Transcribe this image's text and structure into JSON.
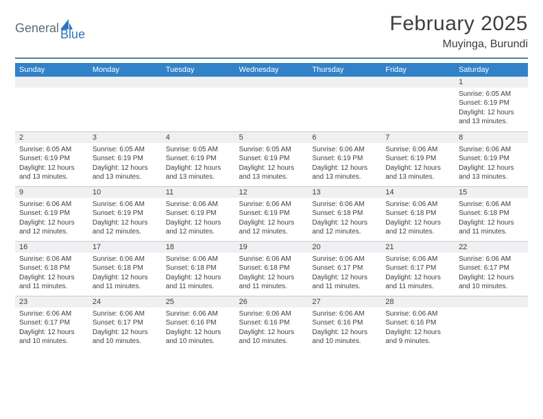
{
  "brand": {
    "text1": "General",
    "text2": "Blue"
  },
  "title": {
    "month": "February 2025",
    "location": "Muyinga, Burundi"
  },
  "colors": {
    "header_bg": "#3182c8",
    "header_text": "#ffffff",
    "stripe_bg": "#eef0f1",
    "underline": "#5b7a99",
    "body_text": "#3d3d3d",
    "brand_gray": "#5f6a72",
    "brand_blue": "#2d75bb"
  },
  "day_headers": [
    "Sunday",
    "Monday",
    "Tuesday",
    "Wednesday",
    "Thursday",
    "Friday",
    "Saturday"
  ],
  "weeks": [
    [
      null,
      null,
      null,
      null,
      null,
      null,
      {
        "n": "1",
        "sunrise": "Sunrise: 6:05 AM",
        "sunset": "Sunset: 6:19 PM",
        "day1": "Daylight: 12 hours",
        "day2": "and 13 minutes."
      }
    ],
    [
      {
        "n": "2",
        "sunrise": "Sunrise: 6:05 AM",
        "sunset": "Sunset: 6:19 PM",
        "day1": "Daylight: 12 hours",
        "day2": "and 13 minutes."
      },
      {
        "n": "3",
        "sunrise": "Sunrise: 6:05 AM",
        "sunset": "Sunset: 6:19 PM",
        "day1": "Daylight: 12 hours",
        "day2": "and 13 minutes."
      },
      {
        "n": "4",
        "sunrise": "Sunrise: 6:05 AM",
        "sunset": "Sunset: 6:19 PM",
        "day1": "Daylight: 12 hours",
        "day2": "and 13 minutes."
      },
      {
        "n": "5",
        "sunrise": "Sunrise: 6:05 AM",
        "sunset": "Sunset: 6:19 PM",
        "day1": "Daylight: 12 hours",
        "day2": "and 13 minutes."
      },
      {
        "n": "6",
        "sunrise": "Sunrise: 6:06 AM",
        "sunset": "Sunset: 6:19 PM",
        "day1": "Daylight: 12 hours",
        "day2": "and 13 minutes."
      },
      {
        "n": "7",
        "sunrise": "Sunrise: 6:06 AM",
        "sunset": "Sunset: 6:19 PM",
        "day1": "Daylight: 12 hours",
        "day2": "and 13 minutes."
      },
      {
        "n": "8",
        "sunrise": "Sunrise: 6:06 AM",
        "sunset": "Sunset: 6:19 PM",
        "day1": "Daylight: 12 hours",
        "day2": "and 13 minutes."
      }
    ],
    [
      {
        "n": "9",
        "sunrise": "Sunrise: 6:06 AM",
        "sunset": "Sunset: 6:19 PM",
        "day1": "Daylight: 12 hours",
        "day2": "and 12 minutes."
      },
      {
        "n": "10",
        "sunrise": "Sunrise: 6:06 AM",
        "sunset": "Sunset: 6:19 PM",
        "day1": "Daylight: 12 hours",
        "day2": "and 12 minutes."
      },
      {
        "n": "11",
        "sunrise": "Sunrise: 6:06 AM",
        "sunset": "Sunset: 6:19 PM",
        "day1": "Daylight: 12 hours",
        "day2": "and 12 minutes."
      },
      {
        "n": "12",
        "sunrise": "Sunrise: 6:06 AM",
        "sunset": "Sunset: 6:19 PM",
        "day1": "Daylight: 12 hours",
        "day2": "and 12 minutes."
      },
      {
        "n": "13",
        "sunrise": "Sunrise: 6:06 AM",
        "sunset": "Sunset: 6:18 PM",
        "day1": "Daylight: 12 hours",
        "day2": "and 12 minutes."
      },
      {
        "n": "14",
        "sunrise": "Sunrise: 6:06 AM",
        "sunset": "Sunset: 6:18 PM",
        "day1": "Daylight: 12 hours",
        "day2": "and 12 minutes."
      },
      {
        "n": "15",
        "sunrise": "Sunrise: 6:06 AM",
        "sunset": "Sunset: 6:18 PM",
        "day1": "Daylight: 12 hours",
        "day2": "and 11 minutes."
      }
    ],
    [
      {
        "n": "16",
        "sunrise": "Sunrise: 6:06 AM",
        "sunset": "Sunset: 6:18 PM",
        "day1": "Daylight: 12 hours",
        "day2": "and 11 minutes."
      },
      {
        "n": "17",
        "sunrise": "Sunrise: 6:06 AM",
        "sunset": "Sunset: 6:18 PM",
        "day1": "Daylight: 12 hours",
        "day2": "and 11 minutes."
      },
      {
        "n": "18",
        "sunrise": "Sunrise: 6:06 AM",
        "sunset": "Sunset: 6:18 PM",
        "day1": "Daylight: 12 hours",
        "day2": "and 11 minutes."
      },
      {
        "n": "19",
        "sunrise": "Sunrise: 6:06 AM",
        "sunset": "Sunset: 6:18 PM",
        "day1": "Daylight: 12 hours",
        "day2": "and 11 minutes."
      },
      {
        "n": "20",
        "sunrise": "Sunrise: 6:06 AM",
        "sunset": "Sunset: 6:17 PM",
        "day1": "Daylight: 12 hours",
        "day2": "and 11 minutes."
      },
      {
        "n": "21",
        "sunrise": "Sunrise: 6:06 AM",
        "sunset": "Sunset: 6:17 PM",
        "day1": "Daylight: 12 hours",
        "day2": "and 11 minutes."
      },
      {
        "n": "22",
        "sunrise": "Sunrise: 6:06 AM",
        "sunset": "Sunset: 6:17 PM",
        "day1": "Daylight: 12 hours",
        "day2": "and 10 minutes."
      }
    ],
    [
      {
        "n": "23",
        "sunrise": "Sunrise: 6:06 AM",
        "sunset": "Sunset: 6:17 PM",
        "day1": "Daylight: 12 hours",
        "day2": "and 10 minutes."
      },
      {
        "n": "24",
        "sunrise": "Sunrise: 6:06 AM",
        "sunset": "Sunset: 6:17 PM",
        "day1": "Daylight: 12 hours",
        "day2": "and 10 minutes."
      },
      {
        "n": "25",
        "sunrise": "Sunrise: 6:06 AM",
        "sunset": "Sunset: 6:16 PM",
        "day1": "Daylight: 12 hours",
        "day2": "and 10 minutes."
      },
      {
        "n": "26",
        "sunrise": "Sunrise: 6:06 AM",
        "sunset": "Sunset: 6:16 PM",
        "day1": "Daylight: 12 hours",
        "day2": "and 10 minutes."
      },
      {
        "n": "27",
        "sunrise": "Sunrise: 6:06 AM",
        "sunset": "Sunset: 6:16 PM",
        "day1": "Daylight: 12 hours",
        "day2": "and 10 minutes."
      },
      {
        "n": "28",
        "sunrise": "Sunrise: 6:06 AM",
        "sunset": "Sunset: 6:16 PM",
        "day1": "Daylight: 12 hours",
        "day2": "and 9 minutes."
      },
      null
    ]
  ]
}
